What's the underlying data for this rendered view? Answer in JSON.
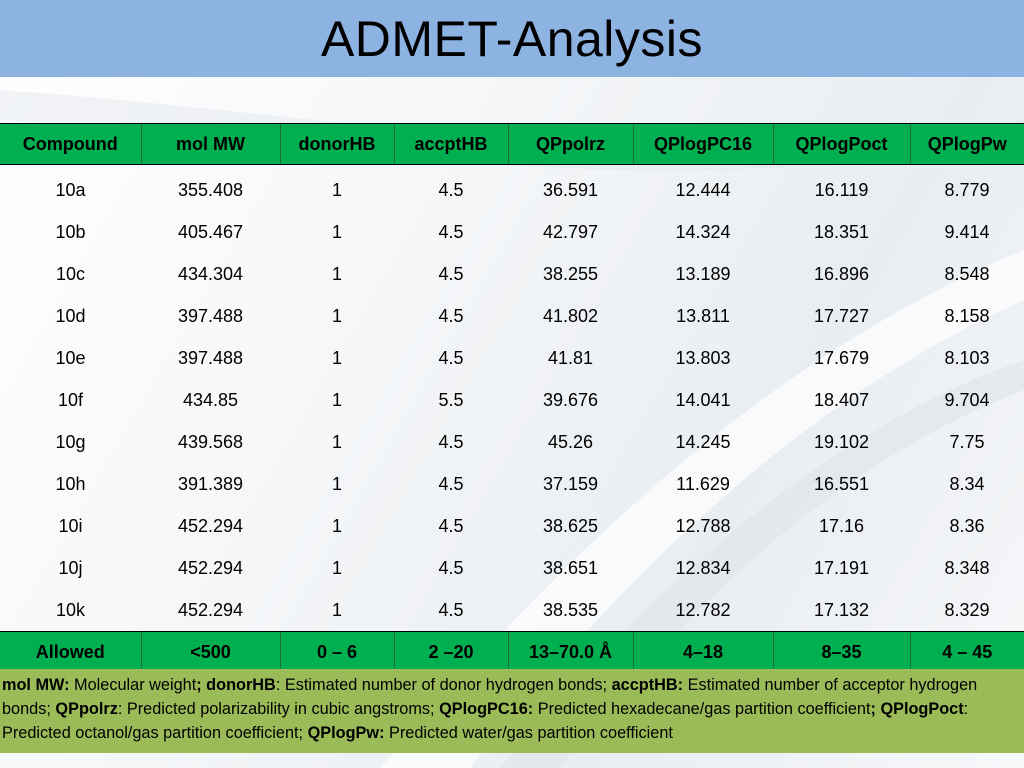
{
  "title": "ADMET-Analysis",
  "table": {
    "headers": [
      "Compound",
      "mol MW",
      "donorHB",
      "accptHB",
      "QPpolrz",
      "QPlogPC16",
      "QPlogPoct",
      "QPlogPw"
    ],
    "rows": [
      [
        "10a",
        "355.408",
        "1",
        "4.5",
        "36.591",
        "12.444",
        "16.119",
        "8.779"
      ],
      [
        "10b",
        "405.467",
        "1",
        "4.5",
        "42.797",
        "14.324",
        "18.351",
        "9.414"
      ],
      [
        "10c",
        "434.304",
        "1",
        "4.5",
        "38.255",
        "13.189",
        "16.896",
        "8.548"
      ],
      [
        "10d",
        "397.488",
        "1",
        "4.5",
        "41.802",
        "13.811",
        "17.727",
        "8.158"
      ],
      [
        "10e",
        "397.488",
        "1",
        "4.5",
        "41.81",
        "13.803",
        "17.679",
        "8.103"
      ],
      [
        "10f",
        "434.85",
        "1",
        "5.5",
        "39.676",
        "14.041",
        "18.407",
        "9.704"
      ],
      [
        "10g",
        "439.568",
        "1",
        "4.5",
        "45.26",
        "14.245",
        "19.102",
        "7.75"
      ],
      [
        "10h",
        "391.389",
        "1",
        "4.5",
        "37.159",
        "11.629",
        "16.551",
        "8.34"
      ],
      [
        "10i",
        "452.294",
        "1",
        "4.5",
        "38.625",
        "12.788",
        "17.16",
        "8.36"
      ],
      [
        "10j",
        "452.294",
        "1",
        "4.5",
        "38.651",
        "12.834",
        "17.191",
        "8.348"
      ],
      [
        "10k",
        "452.294",
        "1",
        "4.5",
        "38.535",
        "12.782",
        "17.132",
        "8.329"
      ]
    ],
    "allowed": [
      "Allowed",
      "<500",
      "0 – 6",
      "2 –20",
      "13–70.0 Å",
      "4–18",
      "8–35",
      "4 – 45"
    ]
  },
  "legend": {
    "t1_bold": "mol MW:",
    "t1": " Molecular weight",
    "t2_bold": "; donorHB",
    "t2": ": Estimated number of donor hydrogen bonds; ",
    "t3_bold": "accptHB:",
    "t3": " Estimated number of acceptor hydrogen bonds; ",
    "t4_bold": "QPpolrz",
    "t4": ": Predicted polarizability in cubic angstroms; ",
    "t5_bold": "QPlogPC16:",
    "t5": " Predicted hexadecane/gas partition coefficient",
    "t6_bold": "; QPlogPoct",
    "t6": ": Predicted octanol/gas partition coefficient; ",
    "t7_bold": "QPlogPw:",
    "t7": " Predicted water/gas partition coefficient"
  },
  "colors": {
    "title_bar": "#8db3e2",
    "table_header": "#00b050",
    "legend_box": "#9bbb59"
  }
}
